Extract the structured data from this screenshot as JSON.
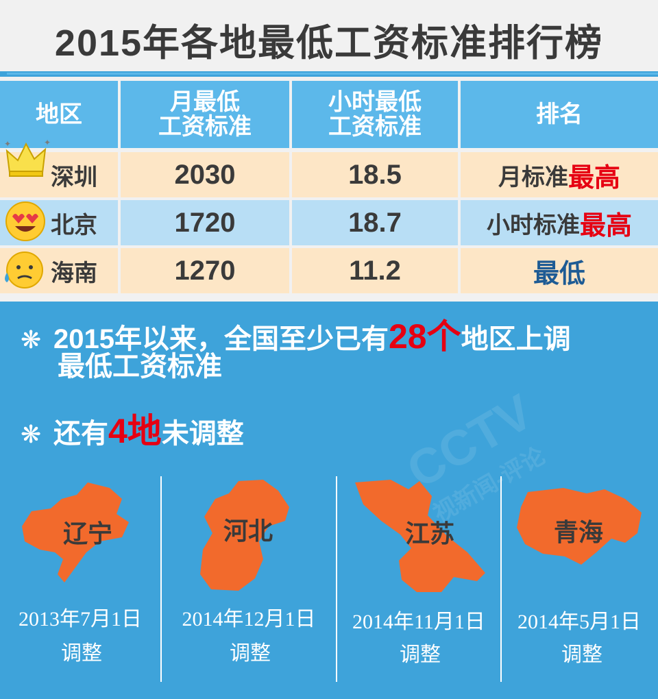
{
  "title": "2015年各地最低工资标准排行榜",
  "table": {
    "headers": {
      "region": "地区",
      "monthly_line1": "月最低",
      "monthly_line2": "工资标准",
      "hourly_line1": "小时最低",
      "hourly_line2": "工资标准",
      "rank": "排名"
    },
    "rows": [
      {
        "region": "深圳",
        "monthly": "2030",
        "hourly": "18.5",
        "rank_prefix": "月标准",
        "rank_highlight": "最高",
        "icon": "crown-icon"
      },
      {
        "region": "北京",
        "monthly": "1720",
        "hourly": "18.7",
        "rank_prefix": "小时标准",
        "rank_highlight": "最高",
        "icon": "heart-eyes-emoji-icon"
      },
      {
        "region": "海南",
        "monthly": "1270",
        "hourly": "11.2",
        "rank_prefix": "",
        "rank_highlight": "最低",
        "icon": "sweat-emoji-icon"
      }
    ]
  },
  "notes": {
    "note1_prefix": "2015年以来，全国至少已有",
    "note1_highlight": "28个",
    "note1_suffix": "地区上调",
    "note1_line2": "最低工资标准",
    "note2_prefix": "还有",
    "note2_highlight": "4地",
    "note2_suffix": "未调整",
    "bullet_icon": "asterisk-icon"
  },
  "provinces": [
    {
      "name": "辽宁",
      "date": "2013年7月1日",
      "action": "调整"
    },
    {
      "name": "河北",
      "date": "2014年12月1日",
      "action": "调整"
    },
    {
      "name": "江苏",
      "date": "2014年11月1日",
      "action": "调整"
    },
    {
      "name": "青海",
      "date": "2014年5月1日",
      "action": "调整"
    }
  ],
  "watermark": {
    "line1": "CCTV",
    "line2": "视新闻-评论"
  },
  "colors": {
    "header_blue": "#5cb8ea",
    "row_peach": "#fde6c6",
    "row_blue": "#b8def5",
    "background_blue": "#3ea3da",
    "map_orange": "#f26a2c",
    "highlight_red": "#e60012",
    "low_blue": "#1e5b94"
  }
}
